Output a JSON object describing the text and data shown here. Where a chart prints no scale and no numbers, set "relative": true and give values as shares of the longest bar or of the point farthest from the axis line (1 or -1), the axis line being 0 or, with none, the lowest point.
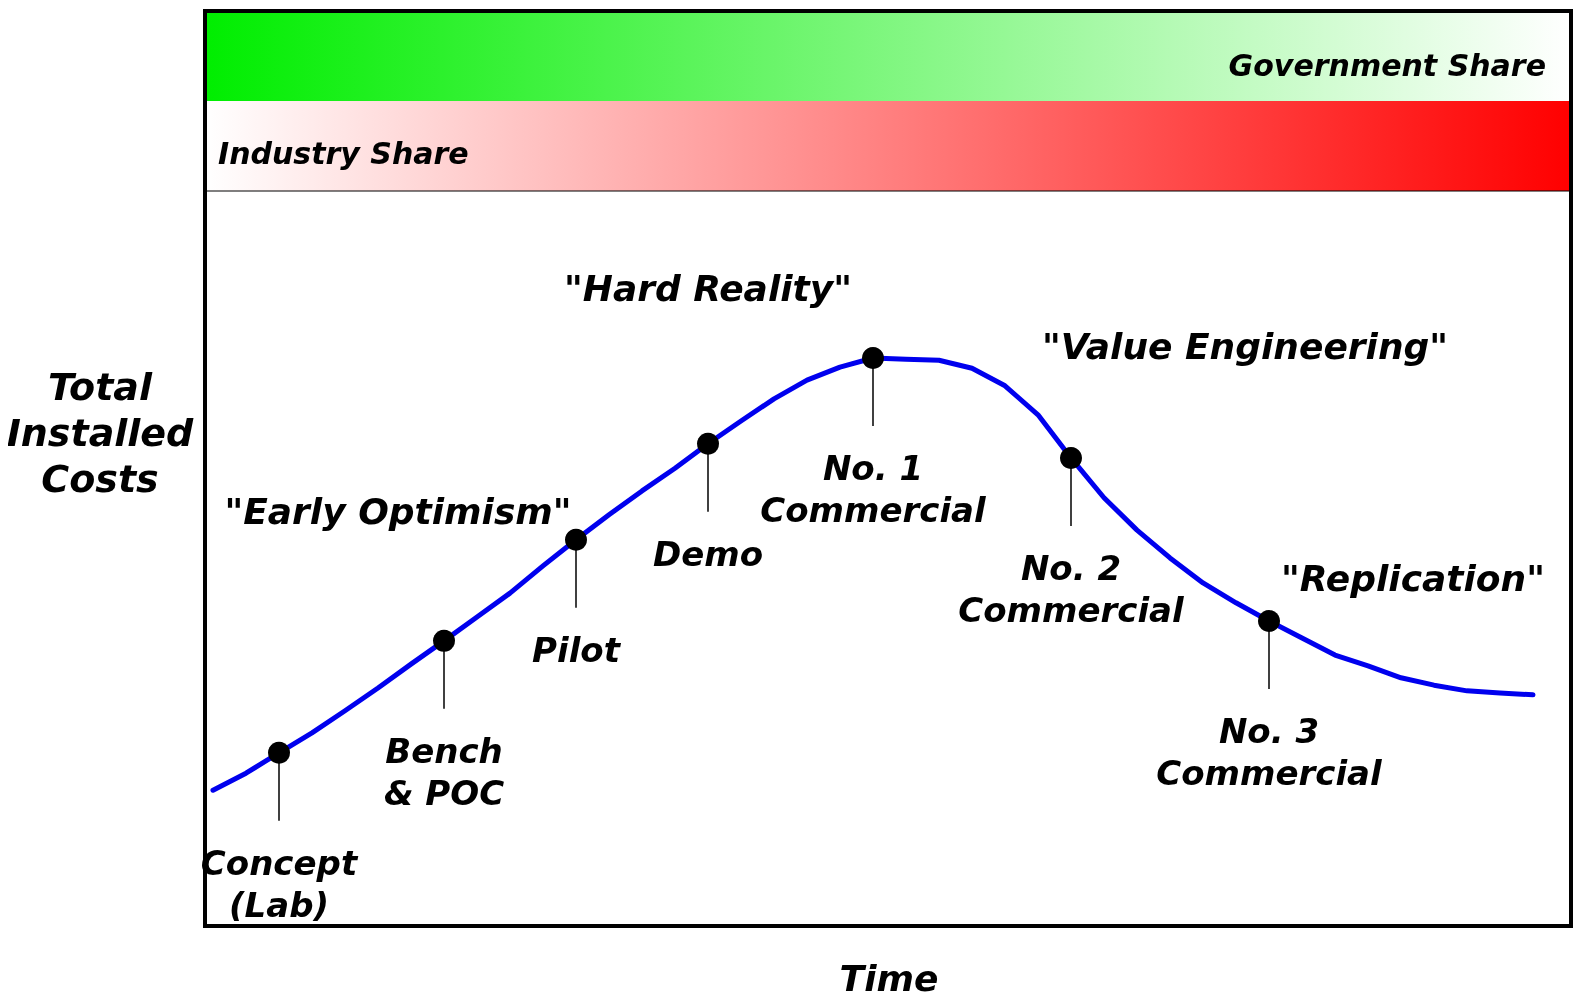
{
  "chart_data": {
    "type": "line",
    "relative": true,
    "xlabel": "Time",
    "ylabel": "Total\nInstalled\nCosts",
    "grid": false,
    "categories": [
      null,
      null,
      null,
      null,
      null,
      null,
      null,
      null,
      null,
      null,
      null,
      null,
      null,
      null,
      null,
      null,
      null,
      null,
      null,
      null,
      null,
      null,
      null,
      null,
      null,
      null,
      null,
      null,
      null,
      null,
      null,
      null,
      null,
      null,
      null,
      null,
      null,
      null,
      null,
      null,
      null
    ],
    "series": [
      {
        "color": "#0000ee",
        "line_style": "solid",
        "values": [
          0.239,
          0.269,
          0.305,
          0.34,
          0.379,
          0.419,
          0.461,
          0.502,
          0.544,
          0.586,
          0.634,
          0.68,
          0.724,
          0.766,
          0.806,
          0.849,
          0.889,
          0.928,
          0.961,
          0.984,
          1.0,
          0.998,
          0.996,
          0.982,
          0.951,
          0.9,
          0.824,
          0.754,
          0.697,
          0.648,
          0.604,
          0.569,
          0.537,
          0.507,
          0.477,
          0.458,
          0.437,
          0.424,
          0.414,
          0.41,
          0.407
        ]
      }
    ],
    "annotations": [
      "\"Early Optimism\"",
      "\"Hard Reality\"",
      "\"Value Engineering\"",
      "\"Replication\"",
      "Government Share",
      "Industry Share",
      {
        "text": "Concept\n(Lab)",
        "y": 0.305
      },
      {
        "text": "Bench\n& POC",
        "y": 0.502
      },
      {
        "text": "Pilot",
        "y": 0.68
      },
      {
        "text": "Demo",
        "y": 0.849
      },
      {
        "text": "No. 1\nCommercial",
        "y": 1.0
      },
      {
        "text": "No. 2\nCommercial",
        "y": 0.824
      },
      {
        "text": "No. 3\nCommercial",
        "y": 0.537
      }
    ]
  }
}
